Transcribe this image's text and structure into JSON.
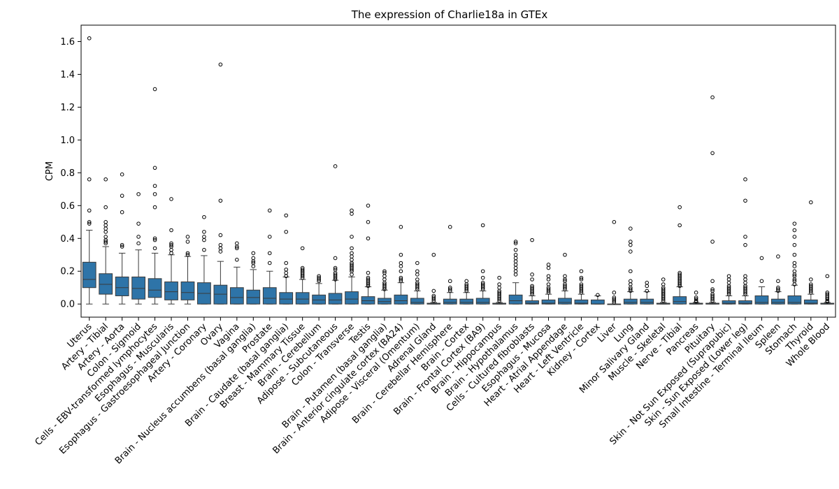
{
  "chart_data": {
    "type": "box",
    "title": "The expression of Charlie18a in GTEx",
    "ylabel": "CPM",
    "xlabel": "",
    "ylim": [
      -0.08,
      1.7
    ],
    "yticks": [
      0.0,
      0.2,
      0.4,
      0.6,
      0.8,
      1.0,
      1.2,
      1.4,
      1.6
    ],
    "ytick_labels": [
      "0.0",
      "0.2",
      "0.4",
      "0.6",
      "0.8",
      "1.0",
      "1.2",
      "1.4",
      "1.6"
    ],
    "color": "#2e74a8",
    "grid": false,
    "categories": [
      "Uterus",
      "Artery - Tibial",
      "Artery - Aorta",
      "Colon - Sigmoid",
      "Cells - EBV-transformed lymphocytes",
      "Esophagus - Muscularis",
      "Esophagus - Gastroesophageal Junction",
      "Artery - Coronary",
      "Ovary",
      "Vagina",
      "Brain - Nucleus accumbens (basal ganglia)",
      "Prostate",
      "Brain - Caudate (basal ganglia)",
      "Breast - Mammary Tissue",
      "Brain - Cerebellum",
      "Adipose - Subcutaneous",
      "Colon - Transverse",
      "Testis",
      "Brain - Putamen (basal ganglia)",
      "Brain - Anterior cingulate cortex (BA24)",
      "Adipose - Visceral (Omentum)",
      "Adrenal Gland",
      "Brain - Cerebellar Hemisphere",
      "Brain - Cortex",
      "Brain - Frontal Cortex (BA9)",
      "Brain - Hippocampus",
      "Brain - Hypothalamus",
      "Cells - Cultured fibroblasts",
      "Esophagus - Mucosa",
      "Heart - Atrial Appendage",
      "Heart - Left Ventricle",
      "Kidney - Cortex",
      "Liver",
      "Lung",
      "Minor Salivary Gland",
      "Muscle - Skeletal",
      "Nerve - Tibial",
      "Pancreas",
      "Pituitary",
      "Skin - Not Sun Exposed (Suprapubic)",
      "Skin - Sun Exposed (Lower leg)",
      "Small Intestine - Terminal Ileum",
      "Spleen",
      "Stomach",
      "Thyroid",
      "Whole Blood"
    ],
    "boxes": [
      {
        "whislo": 0.0,
        "q1": 0.1,
        "med": 0.15,
        "q3": 0.255,
        "whishi": 0.45,
        "fliers": [
          0.49,
          0.5,
          0.57,
          0.76,
          1.62
        ]
      },
      {
        "whislo": 0.0,
        "q1": 0.06,
        "med": 0.12,
        "q3": 0.185,
        "whishi": 0.35,
        "fliers": [
          0.37,
          0.38,
          0.39,
          0.41,
          0.44,
          0.46,
          0.48,
          0.5,
          0.59,
          0.76
        ]
      },
      {
        "whislo": 0.0,
        "q1": 0.05,
        "med": 0.1,
        "q3": 0.165,
        "whishi": 0.31,
        "fliers": [
          0.35,
          0.36,
          0.56,
          0.66,
          0.79
        ]
      },
      {
        "whislo": 0.0,
        "q1": 0.03,
        "med": 0.095,
        "q3": 0.165,
        "whishi": 0.33,
        "fliers": [
          0.37,
          0.41,
          0.49,
          0.67
        ]
      },
      {
        "whislo": 0.0,
        "q1": 0.04,
        "med": 0.085,
        "q3": 0.155,
        "whishi": 0.31,
        "fliers": [
          0.34,
          0.39,
          0.4,
          0.59,
          0.67,
          0.72,
          0.83,
          1.31
        ]
      },
      {
        "whislo": 0.0,
        "q1": 0.025,
        "med": 0.075,
        "q3": 0.135,
        "whishi": 0.3,
        "fliers": [
          0.31,
          0.33,
          0.35,
          0.36,
          0.37,
          0.45,
          0.64
        ]
      },
      {
        "whislo": 0.0,
        "q1": 0.025,
        "med": 0.07,
        "q3": 0.135,
        "whishi": 0.29,
        "fliers": [
          0.3,
          0.31,
          0.38,
          0.41
        ]
      },
      {
        "whislo": 0.0,
        "q1": 0.0,
        "med": 0.065,
        "q3": 0.13,
        "whishi": 0.295,
        "fliers": [
          0.33,
          0.39,
          0.41,
          0.44,
          0.53
        ]
      },
      {
        "whislo": 0.0,
        "q1": 0.0,
        "med": 0.06,
        "q3": 0.115,
        "whishi": 0.26,
        "fliers": [
          0.32,
          0.34,
          0.36,
          0.42,
          0.63,
          1.46
        ]
      },
      {
        "whislo": 0.0,
        "q1": 0.0,
        "med": 0.04,
        "q3": 0.1,
        "whishi": 0.225,
        "fliers": [
          0.27,
          0.34,
          0.35,
          0.37
        ]
      },
      {
        "whislo": 0.0,
        "q1": 0.0,
        "med": 0.04,
        "q3": 0.085,
        "whishi": 0.21,
        "fliers": [
          0.23,
          0.25,
          0.26,
          0.28,
          0.31
        ]
      },
      {
        "whislo": 0.0,
        "q1": 0.0,
        "med": 0.035,
        "q3": 0.1,
        "whishi": 0.2,
        "fliers": [
          0.25,
          0.31,
          0.41,
          0.57
        ]
      },
      {
        "whislo": 0.0,
        "q1": 0.0,
        "med": 0.03,
        "q3": 0.07,
        "whishi": 0.165,
        "fliers": [
          0.17,
          0.19,
          0.21,
          0.25,
          0.44,
          0.54
        ]
      },
      {
        "whislo": 0.0,
        "q1": 0.0,
        "med": 0.03,
        "q3": 0.07,
        "whishi": 0.15,
        "fliers": [
          0.16,
          0.17,
          0.18,
          0.19,
          0.2,
          0.21,
          0.22,
          0.34
        ]
      },
      {
        "whislo": 0.0,
        "q1": 0.0,
        "med": 0.025,
        "q3": 0.055,
        "whishi": 0.125,
        "fliers": [
          0.14,
          0.15,
          0.16,
          0.17
        ]
      },
      {
        "whislo": 0.0,
        "q1": 0.0,
        "med": 0.025,
        "q3": 0.065,
        "whishi": 0.145,
        "fliers": [
          0.15,
          0.16,
          0.17,
          0.18,
          0.19,
          0.21,
          0.22,
          0.28,
          0.84
        ]
      },
      {
        "whislo": 0.0,
        "q1": 0.0,
        "med": 0.03,
        "q3": 0.075,
        "whishi": 0.165,
        "fliers": [
          0.18,
          0.2,
          0.21,
          0.22,
          0.23,
          0.24,
          0.25,
          0.27,
          0.29,
          0.31,
          0.34,
          0.41,
          0.55,
          0.57
        ]
      },
      {
        "whislo": 0.0,
        "q1": 0.0,
        "med": 0.02,
        "q3": 0.045,
        "whishi": 0.105,
        "fliers": [
          0.11,
          0.12,
          0.13,
          0.14,
          0.15,
          0.16,
          0.19,
          0.4,
          0.5,
          0.6
        ]
      },
      {
        "whislo": 0.0,
        "q1": 0.0,
        "med": 0.015,
        "q3": 0.035,
        "whishi": 0.085,
        "fliers": [
          0.09,
          0.1,
          0.11,
          0.12,
          0.13,
          0.15,
          0.17,
          0.19,
          0.2
        ]
      },
      {
        "whislo": 0.0,
        "q1": 0.0,
        "med": 0.02,
        "q3": 0.055,
        "whishi": 0.13,
        "fliers": [
          0.14,
          0.15,
          0.16,
          0.2,
          0.23,
          0.25,
          0.3,
          0.47
        ]
      },
      {
        "whislo": 0.0,
        "q1": 0.0,
        "med": 0.01,
        "q3": 0.035,
        "whishi": 0.08,
        "fliers": [
          0.09,
          0.1,
          0.11,
          0.12,
          0.13,
          0.15,
          0.18,
          0.2,
          0.25
        ]
      },
      {
        "whislo": 0.0,
        "q1": 0.0,
        "med": 0.0,
        "q3": 0.005,
        "whishi": 0.01,
        "fliers": [
          0.02,
          0.03,
          0.04,
          0.05,
          0.08,
          0.3
        ]
      },
      {
        "whislo": 0.0,
        "q1": 0.0,
        "med": 0.01,
        "q3": 0.03,
        "whishi": 0.07,
        "fliers": [
          0.08,
          0.09,
          0.1,
          0.14,
          0.47
        ]
      },
      {
        "whislo": 0.0,
        "q1": 0.0,
        "med": 0.01,
        "q3": 0.03,
        "whishi": 0.07,
        "fliers": [
          0.08,
          0.09,
          0.1,
          0.11,
          0.12,
          0.14
        ]
      },
      {
        "whislo": 0.0,
        "q1": 0.0,
        "med": 0.01,
        "q3": 0.035,
        "whishi": 0.08,
        "fliers": [
          0.09,
          0.1,
          0.11,
          0.12,
          0.13,
          0.16,
          0.2,
          0.48
        ]
      },
      {
        "whislo": 0.0,
        "q1": 0.0,
        "med": 0.0,
        "q3": 0.005,
        "whishi": 0.01,
        "fliers": [
          0.02,
          0.03,
          0.04,
          0.05,
          0.06,
          0.07,
          0.08,
          0.1,
          0.12,
          0.16
        ]
      },
      {
        "whislo": 0.0,
        "q1": 0.0,
        "med": 0.02,
        "q3": 0.055,
        "whishi": 0.13,
        "fliers": [
          0.18,
          0.2,
          0.22,
          0.24,
          0.26,
          0.28,
          0.3,
          0.33,
          0.37,
          0.38
        ]
      },
      {
        "whislo": 0.0,
        "q1": 0.0,
        "med": 0.005,
        "q3": 0.02,
        "whishi": 0.05,
        "fliers": [
          0.06,
          0.07,
          0.08,
          0.09,
          0.1,
          0.11,
          0.15,
          0.18,
          0.39
        ]
      },
      {
        "whislo": 0.0,
        "q1": 0.0,
        "med": 0.005,
        "q3": 0.025,
        "whishi": 0.06,
        "fliers": [
          0.07,
          0.08,
          0.09,
          0.1,
          0.12,
          0.15,
          0.17,
          0.22,
          0.24
        ]
      },
      {
        "whislo": 0.0,
        "q1": 0.0,
        "med": 0.01,
        "q3": 0.035,
        "whishi": 0.08,
        "fliers": [
          0.09,
          0.1,
          0.11,
          0.12,
          0.14,
          0.15,
          0.17,
          0.3
        ]
      },
      {
        "whislo": 0.0,
        "q1": 0.0,
        "med": 0.005,
        "q3": 0.025,
        "whishi": 0.06,
        "fliers": [
          0.07,
          0.08,
          0.09,
          0.1,
          0.11,
          0.12,
          0.15,
          0.16,
          0.2
        ]
      },
      {
        "whislo": 0.0,
        "q1": 0.0,
        "med": 0.0,
        "q3": 0.025,
        "whishi": 0.05,
        "fliers": [
          0.055
        ]
      },
      {
        "whislo": 0.0,
        "q1": 0.0,
        "med": 0.0,
        "q3": 0.0,
        "whishi": 0.0,
        "fliers": [
          0.01,
          0.02,
          0.03,
          0.04,
          0.07,
          0.5
        ]
      },
      {
        "whislo": 0.0,
        "q1": 0.0,
        "med": 0.01,
        "q3": 0.03,
        "whishi": 0.075,
        "fliers": [
          0.08,
          0.09,
          0.1,
          0.12,
          0.14,
          0.2,
          0.32,
          0.36,
          0.38,
          0.46
        ]
      },
      {
        "whislo": 0.0,
        "q1": 0.0,
        "med": 0.01,
        "q3": 0.03,
        "whishi": 0.075,
        "fliers": [
          0.08,
          0.11,
          0.13
        ]
      },
      {
        "whislo": 0.0,
        "q1": 0.0,
        "med": 0.0,
        "q3": 0.005,
        "whishi": 0.01,
        "fliers": [
          0.02,
          0.03,
          0.04,
          0.05,
          0.06,
          0.07,
          0.08,
          0.09,
          0.1,
          0.12,
          0.15
        ]
      },
      {
        "whislo": 0.0,
        "q1": 0.0,
        "med": 0.015,
        "q3": 0.045,
        "whishi": 0.105,
        "fliers": [
          0.11,
          0.12,
          0.13,
          0.14,
          0.15,
          0.16,
          0.17,
          0.18,
          0.19,
          0.48,
          0.59
        ]
      },
      {
        "whislo": 0.0,
        "q1": 0.0,
        "med": 0.0,
        "q3": 0.005,
        "whishi": 0.01,
        "fliers": [
          0.015,
          0.02,
          0.03,
          0.04,
          0.07
        ]
      },
      {
        "whislo": 0.0,
        "q1": 0.0,
        "med": 0.0,
        "q3": 0.005,
        "whishi": 0.01,
        "fliers": [
          0.02,
          0.03,
          0.04,
          0.05,
          0.06,
          0.08,
          0.09,
          0.14,
          0.38,
          0.92,
          1.26
        ]
      },
      {
        "whislo": 0.0,
        "q1": 0.0,
        "med": 0.005,
        "q3": 0.02,
        "whishi": 0.05,
        "fliers": [
          0.06,
          0.07,
          0.08,
          0.09,
          0.1,
          0.11,
          0.13,
          0.15,
          0.17
        ]
      },
      {
        "whislo": 0.0,
        "q1": 0.0,
        "med": 0.005,
        "q3": 0.02,
        "whishi": 0.05,
        "fliers": [
          0.06,
          0.07,
          0.08,
          0.09,
          0.1,
          0.11,
          0.13,
          0.15,
          0.17,
          0.36,
          0.41,
          0.63,
          0.76
        ]
      },
      {
        "whislo": 0.0,
        "q1": 0.0,
        "med": 0.01,
        "q3": 0.05,
        "whishi": 0.105,
        "fliers": [
          0.14,
          0.28
        ]
      },
      {
        "whislo": 0.0,
        "q1": 0.0,
        "med": 0.01,
        "q3": 0.03,
        "whishi": 0.075,
        "fliers": [
          0.08,
          0.09,
          0.1,
          0.14,
          0.29
        ]
      },
      {
        "whislo": 0.0,
        "q1": 0.0,
        "med": 0.01,
        "q3": 0.05,
        "whishi": 0.115,
        "fliers": [
          0.12,
          0.14,
          0.15,
          0.17,
          0.18,
          0.2,
          0.23,
          0.25,
          0.3,
          0.36,
          0.41,
          0.45,
          0.49
        ]
      },
      {
        "whislo": 0.0,
        "q1": 0.0,
        "med": 0.005,
        "q3": 0.025,
        "whishi": 0.06,
        "fliers": [
          0.07,
          0.08,
          0.09,
          0.1,
          0.11,
          0.12,
          0.15,
          0.62
        ]
      },
      {
        "whislo": 0.0,
        "q1": 0.0,
        "med": 0.0,
        "q3": 0.005,
        "whishi": 0.01,
        "fliers": [
          0.015,
          0.02,
          0.03,
          0.04,
          0.05,
          0.06,
          0.07,
          0.17
        ]
      }
    ]
  }
}
